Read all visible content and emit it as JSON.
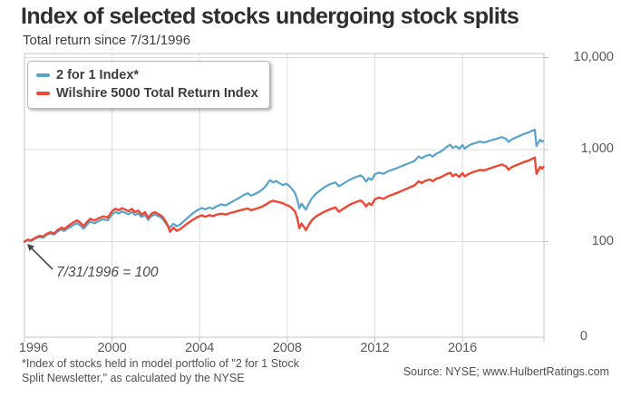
{
  "header": {
    "title": "Index of selected stocks undergoing stock splits",
    "subtitle": "Total return since 7/31/1996"
  },
  "annotation_label": "7/31/1996 = 100",
  "footnote": {
    "line1": "*Index of stocks held in model portfolio of \"2 for 1 Stock",
    "line2": "Split Newsletter,\" as calculated by the NYSE"
  },
  "source_label": "Source: NYSE; www.HulbertRatings.com",
  "colors": {
    "blue_series": "#58a3cb",
    "red_series": "#ee4733",
    "grid": "#dcdcdc",
    "border": "#c3c3c3",
    "tick_text": "#595959"
  },
  "chart_data": {
    "type": "line",
    "title": "Index of selected stocks undergoing stock splits",
    "subtitle": "Total return since 7/31/1996",
    "xlabel": "",
    "ylabel": "",
    "x_axis": {
      "ticks": [
        1996,
        2000,
        2004,
        2008,
        2012,
        2016
      ],
      "range": [
        1996,
        2019.72
      ],
      "grid": true
    },
    "y_axis": {
      "scale": "log",
      "tick_labels": [
        "10,000",
        "1,000",
        "100",
        "0"
      ],
      "tick_values": [
        10000,
        1000,
        100,
        null
      ],
      "grid": true
    },
    "legend_position": "top-left",
    "annotation": "7/31/1996 = 100",
    "series": [
      {
        "name": "2 for 1 Index*",
        "color": "#58a3cb",
        "points": [
          [
            1996.0,
            100
          ],
          [
            1996.15,
            104
          ],
          [
            1996.3,
            101
          ],
          [
            1996.5,
            108
          ],
          [
            1996.7,
            113
          ],
          [
            1996.85,
            110
          ],
          [
            1997.0,
            118
          ],
          [
            1997.2,
            123
          ],
          [
            1997.35,
            119
          ],
          [
            1997.5,
            128
          ],
          [
            1997.7,
            136
          ],
          [
            1997.8,
            130
          ],
          [
            1997.95,
            138
          ],
          [
            1998.1,
            144
          ],
          [
            1998.25,
            152
          ],
          [
            1998.4,
            158
          ],
          [
            1998.55,
            150
          ],
          [
            1998.7,
            138
          ],
          [
            1998.85,
            152
          ],
          [
            1999.0,
            165
          ],
          [
            1999.2,
            158
          ],
          [
            1999.4,
            168
          ],
          [
            1999.6,
            175
          ],
          [
            1999.8,
            170
          ],
          [
            2000.0,
            197
          ],
          [
            2000.15,
            210
          ],
          [
            2000.3,
            202
          ],
          [
            2000.45,
            213
          ],
          [
            2000.6,
            206
          ],
          [
            2000.75,
            198
          ],
          [
            2000.9,
            210
          ],
          [
            2001.05,
            195
          ],
          [
            2001.2,
            202
          ],
          [
            2001.35,
            185
          ],
          [
            2001.5,
            196
          ],
          [
            2001.65,
            172
          ],
          [
            2001.8,
            190
          ],
          [
            2001.95,
            197
          ],
          [
            2002.1,
            190
          ],
          [
            2002.3,
            178
          ],
          [
            2002.5,
            152
          ],
          [
            2002.65,
            143
          ],
          [
            2002.8,
            156
          ],
          [
            2002.95,
            147
          ],
          [
            2003.1,
            153
          ],
          [
            2003.3,
            168
          ],
          [
            2003.5,
            186
          ],
          [
            2003.7,
            204
          ],
          [
            2003.9,
            220
          ],
          [
            2004.1,
            232
          ],
          [
            2004.25,
            224
          ],
          [
            2004.45,
            234
          ],
          [
            2004.6,
            228
          ],
          [
            2004.8,
            244
          ],
          [
            2005.0,
            254
          ],
          [
            2005.2,
            248
          ],
          [
            2005.4,
            264
          ],
          [
            2005.6,
            282
          ],
          [
            2005.8,
            298
          ],
          [
            2006.0,
            320
          ],
          [
            2006.2,
            335
          ],
          [
            2006.35,
            315
          ],
          [
            2006.55,
            332
          ],
          [
            2006.75,
            352
          ],
          [
            2006.9,
            375
          ],
          [
            2007.05,
            410
          ],
          [
            2007.2,
            465
          ],
          [
            2007.35,
            440
          ],
          [
            2007.5,
            455
          ],
          [
            2007.65,
            430
          ],
          [
            2007.8,
            412
          ],
          [
            2007.95,
            425
          ],
          [
            2008.1,
            400
          ],
          [
            2008.2,
            378
          ],
          [
            2008.35,
            340
          ],
          [
            2008.45,
            288
          ],
          [
            2008.55,
            230
          ],
          [
            2008.65,
            258
          ],
          [
            2008.75,
            240
          ],
          [
            2008.85,
            222
          ],
          [
            2009.0,
            262
          ],
          [
            2009.12,
            295
          ],
          [
            2009.3,
            330
          ],
          [
            2009.5,
            360
          ],
          [
            2009.7,
            390
          ],
          [
            2009.85,
            410
          ],
          [
            2010.0,
            425
          ],
          [
            2010.2,
            440
          ],
          [
            2010.35,
            400
          ],
          [
            2010.55,
            425
          ],
          [
            2010.75,
            455
          ],
          [
            2010.9,
            475
          ],
          [
            2011.05,
            495
          ],
          [
            2011.2,
            510
          ],
          [
            2011.35,
            525
          ],
          [
            2011.45,
            505
          ],
          [
            2011.6,
            450
          ],
          [
            2011.72,
            490
          ],
          [
            2011.85,
            468
          ],
          [
            2012.0,
            540
          ],
          [
            2012.2,
            562
          ],
          [
            2012.4,
            546
          ],
          [
            2012.6,
            582
          ],
          [
            2012.8,
            605
          ],
          [
            2013.0,
            628
          ],
          [
            2013.2,
            658
          ],
          [
            2013.4,
            688
          ],
          [
            2013.6,
            718
          ],
          [
            2013.8,
            750
          ],
          [
            2014.0,
            843
          ],
          [
            2014.15,
            805
          ],
          [
            2014.3,
            850
          ],
          [
            2014.5,
            880
          ],
          [
            2014.65,
            840
          ],
          [
            2014.8,
            900
          ],
          [
            2015.0,
            950
          ],
          [
            2015.15,
            1005
          ],
          [
            2015.3,
            1080
          ],
          [
            2015.45,
            1130
          ],
          [
            2015.55,
            1040
          ],
          [
            2015.7,
            1090
          ],
          [
            2015.85,
            1020
          ],
          [
            2016.0,
            1120
          ],
          [
            2016.1,
            1030
          ],
          [
            2016.25,
            1090
          ],
          [
            2016.4,
            1140
          ],
          [
            2016.6,
            1180
          ],
          [
            2016.8,
            1220
          ],
          [
            2017.0,
            1190
          ],
          [
            2017.2,
            1240
          ],
          [
            2017.4,
            1280
          ],
          [
            2017.6,
            1320
          ],
          [
            2017.8,
            1370
          ],
          [
            2018.0,
            1300
          ],
          [
            2018.1,
            1210
          ],
          [
            2018.25,
            1290
          ],
          [
            2018.4,
            1340
          ],
          [
            2018.55,
            1390
          ],
          [
            2018.7,
            1440
          ],
          [
            2018.85,
            1490
          ],
          [
            2019.0,
            1530
          ],
          [
            2019.1,
            1570
          ],
          [
            2019.2,
            1610
          ],
          [
            2019.3,
            1640
          ],
          [
            2019.38,
            1090
          ],
          [
            2019.45,
            1180
          ],
          [
            2019.55,
            1280
          ],
          [
            2019.62,
            1220
          ],
          [
            2019.7,
            1240
          ]
        ]
      },
      {
        "name": "Wilshire 5000 Total Return Index",
        "color": "#ee4733",
        "points": [
          [
            1996.0,
            100
          ],
          [
            1996.15,
            105
          ],
          [
            1996.3,
            103
          ],
          [
            1996.5,
            110
          ],
          [
            1996.7,
            116
          ],
          [
            1996.85,
            113
          ],
          [
            1997.0,
            121
          ],
          [
            1997.2,
            127
          ],
          [
            1997.35,
            122
          ],
          [
            1997.5,
            133
          ],
          [
            1997.7,
            142
          ],
          [
            1997.8,
            136
          ],
          [
            1997.95,
            145
          ],
          [
            1998.1,
            154
          ],
          [
            1998.25,
            163
          ],
          [
            1998.4,
            170
          ],
          [
            1998.55,
            161
          ],
          [
            1998.7,
            147
          ],
          [
            1998.85,
            163
          ],
          [
            1999.0,
            177
          ],
          [
            1999.2,
            170
          ],
          [
            1999.4,
            180
          ],
          [
            1999.6,
            188
          ],
          [
            1999.8,
            183
          ],
          [
            2000.0,
            214
          ],
          [
            2000.15,
            228
          ],
          [
            2000.3,
            219
          ],
          [
            2000.45,
            231
          ],
          [
            2000.6,
            223
          ],
          [
            2000.75,
            214
          ],
          [
            2000.9,
            227
          ],
          [
            2001.05,
            209
          ],
          [
            2001.2,
            217
          ],
          [
            2001.35,
            197
          ],
          [
            2001.5,
            209
          ],
          [
            2001.65,
            182
          ],
          [
            2001.8,
            201
          ],
          [
            2001.95,
            209
          ],
          [
            2002.1,
            200
          ],
          [
            2002.3,
            187
          ],
          [
            2002.5,
            158
          ],
          [
            2002.65,
            128
          ],
          [
            2002.8,
            142
          ],
          [
            2002.95,
            131
          ],
          [
            2003.1,
            136
          ],
          [
            2003.3,
            148
          ],
          [
            2003.5,
            161
          ],
          [
            2003.7,
            173
          ],
          [
            2003.9,
            185
          ],
          [
            2004.1,
            193
          ],
          [
            2004.25,
            186
          ],
          [
            2004.45,
            194
          ],
          [
            2004.6,
            189
          ],
          [
            2004.8,
            197
          ],
          [
            2005.0,
            201
          ],
          [
            2005.2,
            197
          ],
          [
            2005.4,
            205
          ],
          [
            2005.6,
            211
          ],
          [
            2005.8,
            217
          ],
          [
            2006.0,
            223
          ],
          [
            2006.2,
            229
          ],
          [
            2006.35,
            219
          ],
          [
            2006.55,
            227
          ],
          [
            2006.75,
            235
          ],
          [
            2006.9,
            243
          ],
          [
            2007.05,
            255
          ],
          [
            2007.2,
            270
          ],
          [
            2007.35,
            278
          ],
          [
            2007.5,
            272
          ],
          [
            2007.65,
            267
          ],
          [
            2007.8,
            261
          ],
          [
            2007.95,
            250
          ],
          [
            2008.1,
            243
          ],
          [
            2008.2,
            232
          ],
          [
            2008.35,
            214
          ],
          [
            2008.45,
            182
          ],
          [
            2008.55,
            140
          ],
          [
            2008.65,
            157
          ],
          [
            2008.75,
            146
          ],
          [
            2008.85,
            133
          ],
          [
            2009.0,
            155
          ],
          [
            2009.12,
            170
          ],
          [
            2009.3,
            187
          ],
          [
            2009.5,
            199
          ],
          [
            2009.7,
            211
          ],
          [
            2009.85,
            219
          ],
          [
            2010.0,
            227
          ],
          [
            2010.2,
            235
          ],
          [
            2010.35,
            211
          ],
          [
            2010.55,
            227
          ],
          [
            2010.75,
            243
          ],
          [
            2010.9,
            255
          ],
          [
            2011.05,
            264
          ],
          [
            2011.2,
            272
          ],
          [
            2011.35,
            280
          ],
          [
            2011.45,
            269
          ],
          [
            2011.6,
            241
          ],
          [
            2011.72,
            261
          ],
          [
            2011.85,
            250
          ],
          [
            2012.0,
            290
          ],
          [
            2012.2,
            301
          ],
          [
            2012.4,
            292
          ],
          [
            2012.6,
            311
          ],
          [
            2012.8,
            323
          ],
          [
            2013.0,
            337
          ],
          [
            2013.2,
            354
          ],
          [
            2013.4,
            371
          ],
          [
            2013.6,
            389
          ],
          [
            2013.8,
            407
          ],
          [
            2014.0,
            452
          ],
          [
            2014.15,
            434
          ],
          [
            2014.3,
            457
          ],
          [
            2014.5,
            474
          ],
          [
            2014.65,
            453
          ],
          [
            2014.8,
            482
          ],
          [
            2015.0,
            500
          ],
          [
            2015.15,
            522
          ],
          [
            2015.3,
            545
          ],
          [
            2015.45,
            560
          ],
          [
            2015.55,
            515
          ],
          [
            2015.7,
            540
          ],
          [
            2015.85,
            505
          ],
          [
            2016.0,
            555
          ],
          [
            2016.1,
            512
          ],
          [
            2016.25,
            538
          ],
          [
            2016.4,
            560
          ],
          [
            2016.6,
            580
          ],
          [
            2016.8,
            600
          ],
          [
            2017.0,
            595
          ],
          [
            2017.2,
            620
          ],
          [
            2017.4,
            642
          ],
          [
            2017.6,
            665
          ],
          [
            2017.8,
            690
          ],
          [
            2018.0,
            655
          ],
          [
            2018.1,
            605
          ],
          [
            2018.25,
            645
          ],
          [
            2018.4,
            668
          ],
          [
            2018.55,
            690
          ],
          [
            2018.7,
            715
          ],
          [
            2018.85,
            738
          ],
          [
            2019.0,
            757
          ],
          [
            2019.1,
            777
          ],
          [
            2019.2,
            797
          ],
          [
            2019.3,
            820
          ],
          [
            2019.38,
            545
          ],
          [
            2019.45,
            590
          ],
          [
            2019.55,
            650
          ],
          [
            2019.62,
            618
          ],
          [
            2019.7,
            650
          ]
        ]
      }
    ]
  }
}
